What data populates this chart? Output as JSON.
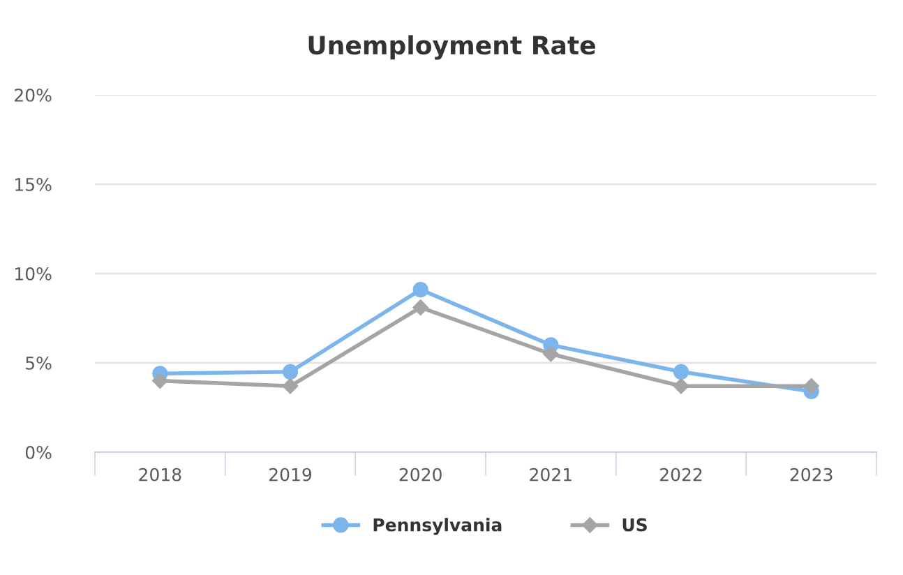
{
  "chart_data": {
    "type": "line",
    "title": "Unemployment Rate",
    "categories": [
      "2018",
      "2019",
      "2020",
      "2021",
      "2022",
      "2023"
    ],
    "series": [
      {
        "name": "Pennsylvania",
        "color": "#7cb5ec",
        "marker": "circle",
        "values": [
          4.4,
          4.5,
          9.1,
          6.0,
          4.5,
          3.4
        ]
      },
      {
        "name": "US",
        "color": "#a5a5a5",
        "marker": "diamond",
        "values": [
          4.0,
          3.7,
          8.1,
          5.5,
          3.7,
          3.7
        ]
      }
    ],
    "ylim": [
      0,
      20
    ],
    "yticks": [
      {
        "value": 0,
        "label": "0%"
      },
      {
        "value": 5,
        "label": "5%"
      },
      {
        "value": 10,
        "label": "10%"
      },
      {
        "value": 15,
        "label": "15%"
      },
      {
        "value": 20,
        "label": "20%"
      }
    ],
    "grid": "y",
    "legend": "bottom"
  }
}
